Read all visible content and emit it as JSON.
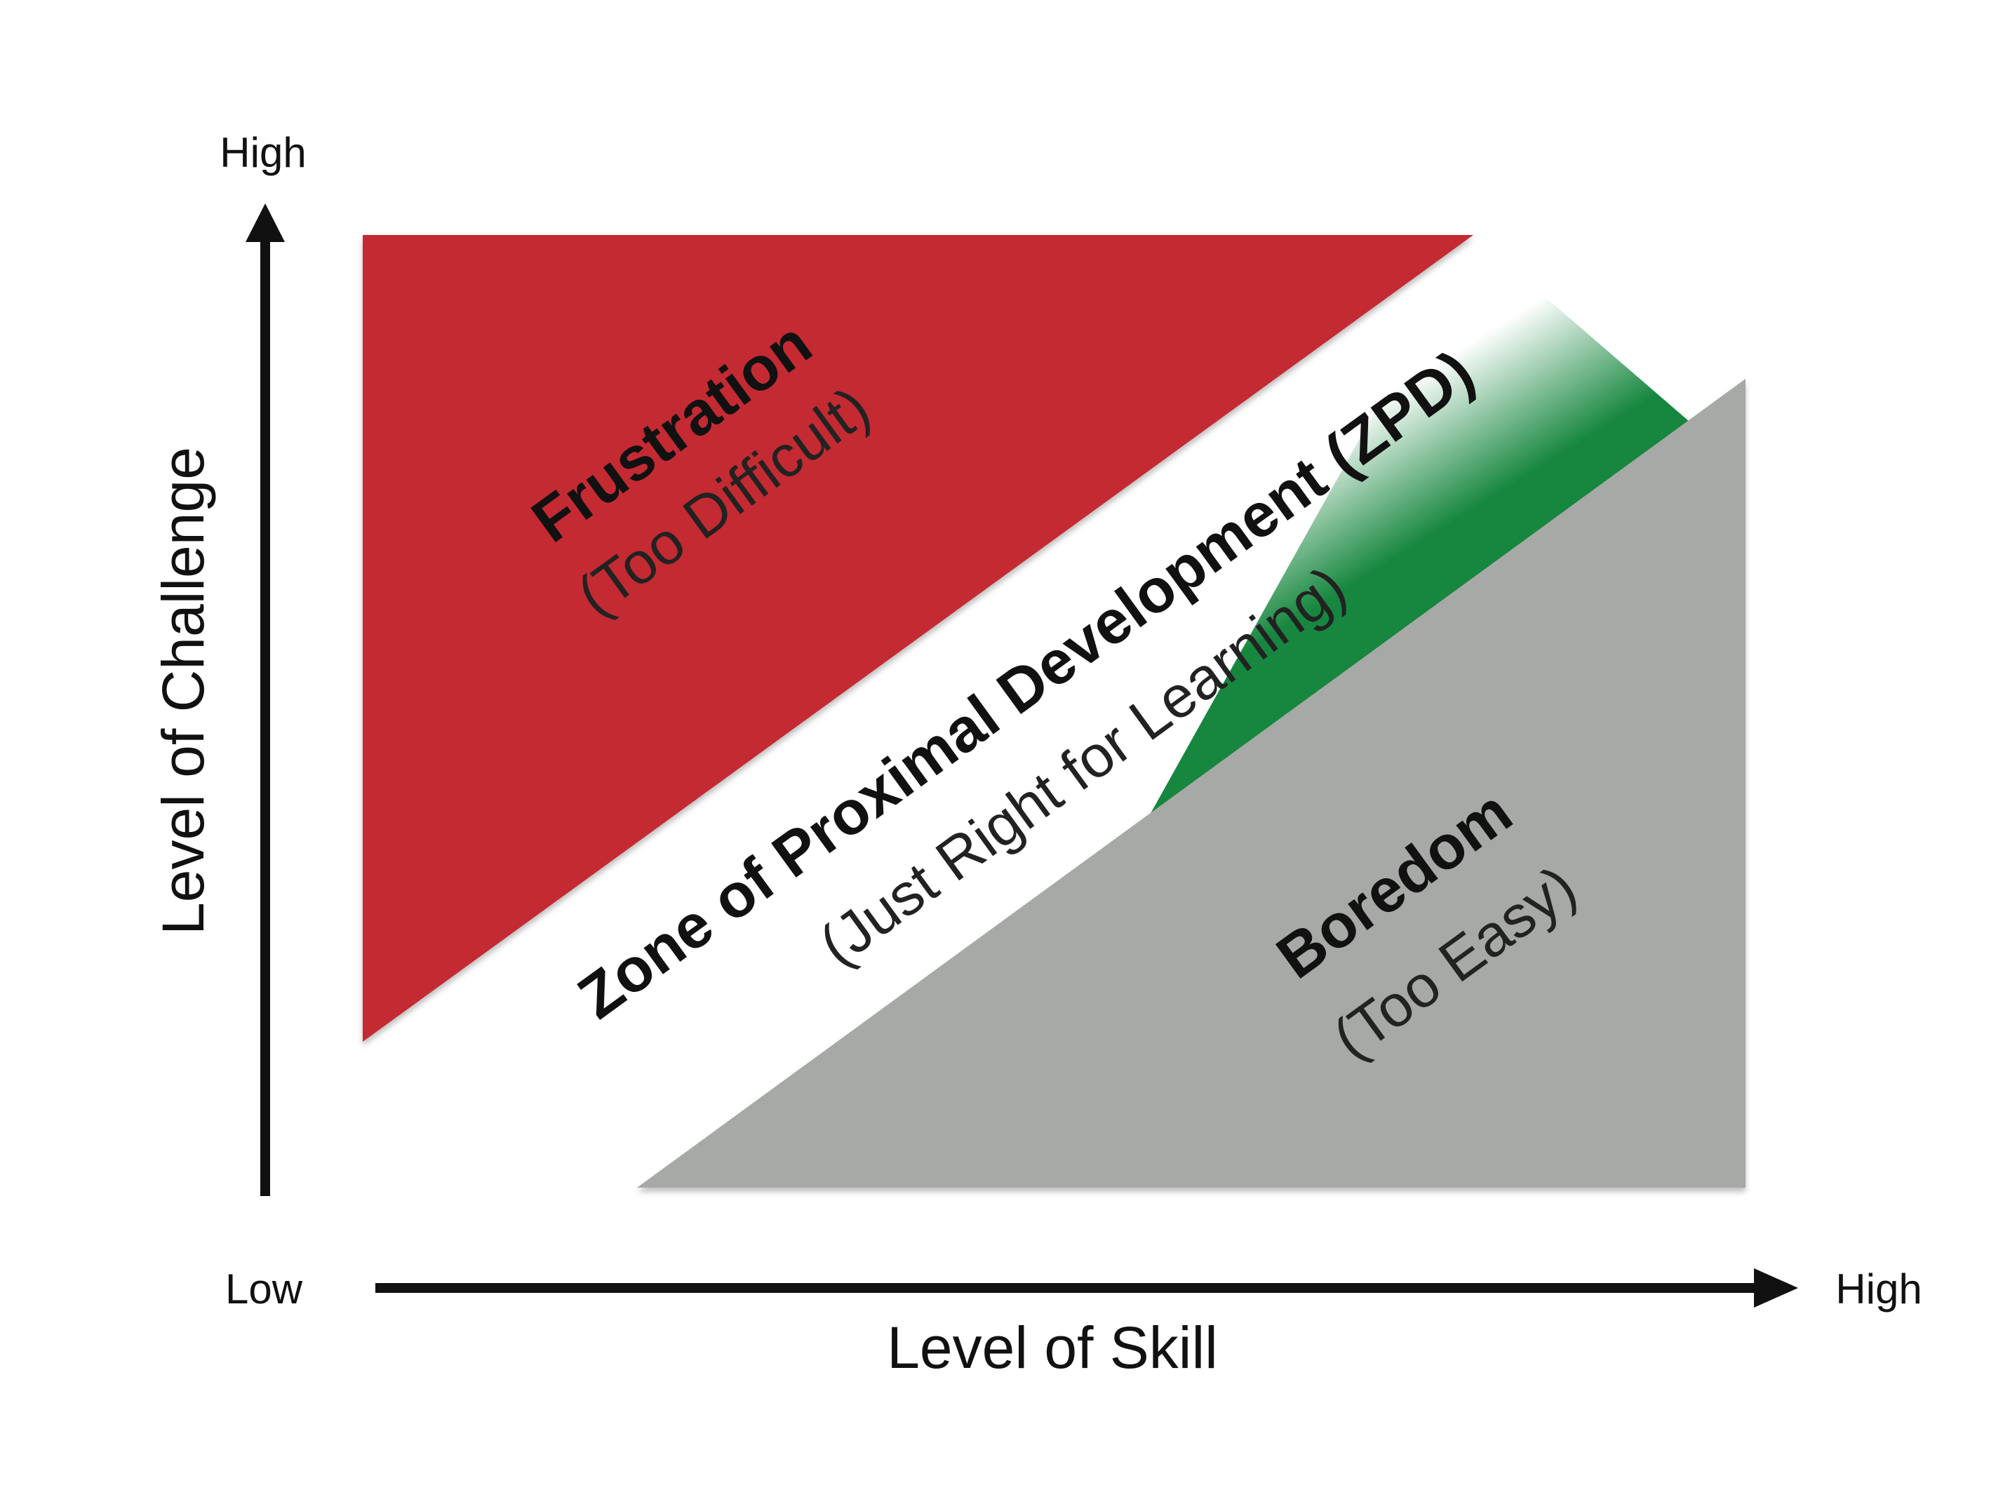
{
  "axes": {
    "y": {
      "title": "Level of Challenge",
      "high_label": "High"
    },
    "x": {
      "title": "Level of Skill",
      "low_label": "Low",
      "high_label": "High"
    }
  },
  "zones": {
    "frustration": {
      "title": "Frustration",
      "subtitle": "(Too Difficult)",
      "color": "#C42A30"
    },
    "zpd": {
      "title": "Zone of Proximal Development (ZPD)",
      "subtitle": "(Just Right for Learning)",
      "color": "#17873F"
    },
    "boredom": {
      "title": "Boredom",
      "subtitle": "(Too Easy)",
      "color": "#A6A9A5"
    }
  },
  "colors": {
    "axis": "#111111",
    "background": "#FFFFFF"
  }
}
